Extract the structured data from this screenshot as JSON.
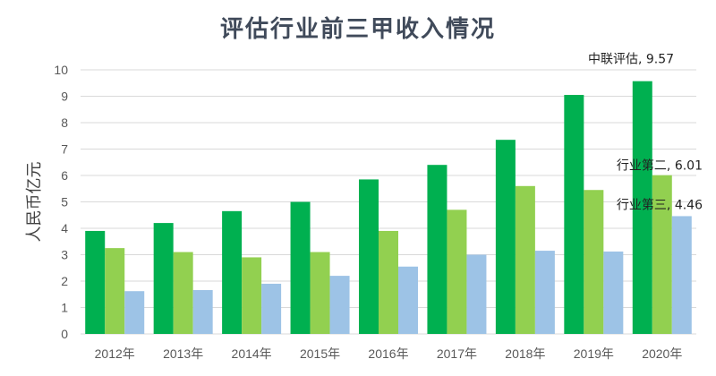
{
  "chart_data": {
    "type": "bar",
    "title": "评估行业前三甲收入情况",
    "ylabel": "人民币亿元",
    "xlabel": "",
    "ylim": [
      0,
      10
    ],
    "yticks": [
      0,
      1,
      2,
      3,
      4,
      5,
      6,
      7,
      8,
      9,
      10
    ],
    "grid": true,
    "categories": [
      "2012年",
      "2013年",
      "2014年",
      "2015年",
      "2016年",
      "2017年",
      "2018年",
      "2019年",
      "2020年"
    ],
    "series": [
      {
        "values": [
          3.9,
          4.2,
          4.65,
          5.0,
          5.85,
          6.4,
          7.35,
          9.05,
          9.57
        ],
        "color": "#00b050"
      },
      {
        "values": [
          3.25,
          3.1,
          2.9,
          3.1,
          3.9,
          4.7,
          5.6,
          5.45,
          6.01
        ],
        "color": "#92d050"
      },
      {
        "values": [
          1.62,
          1.66,
          1.9,
          2.2,
          2.55,
          3.0,
          3.15,
          3.12,
          4.46
        ],
        "color": "#9dc3e6"
      }
    ],
    "annotations": [
      "中联评估, 9.57",
      "行业第二, 6.01",
      "行业第三, 4.46"
    ]
  }
}
